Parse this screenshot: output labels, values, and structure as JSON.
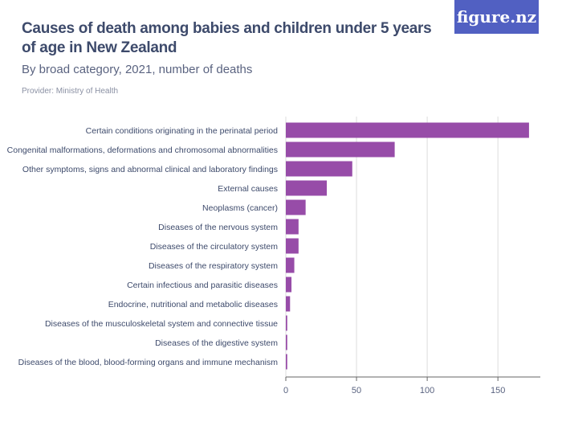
{
  "header": {
    "title": "Causes of death among babies and children under 5 years of age in New Zealand",
    "subtitle": "By broad category, 2021, number of deaths",
    "provider": "Provider: Ministry of Health",
    "logo": "figure.nz"
  },
  "chart_data": {
    "type": "bar",
    "orientation": "horizontal",
    "categories": [
      "Certain conditions originating in the perinatal period",
      "Congenital malformations, deformations and chromosomal abnormalities",
      "Other symptoms, signs and abnormal clinical and laboratory findings",
      "External causes",
      "Neoplasms (cancer)",
      "Diseases of the nervous system",
      "Diseases of the circulatory system",
      "Diseases of the respiratory system",
      "Certain infectious and parasitic diseases",
      "Endocrine, nutritional and metabolic diseases",
      "Diseases of the musculoskeletal system and connective tissue",
      "Diseases of the digestive system",
      "Diseases of the blood, blood-forming organs and immune mechanism"
    ],
    "values": [
      172,
      77,
      47,
      29,
      14,
      9,
      9,
      6,
      4,
      3,
      1,
      1,
      1
    ],
    "xlim": [
      0,
      180
    ],
    "xticks": [
      0,
      50,
      100,
      150
    ],
    "grid": true,
    "color": "#974ca8"
  }
}
